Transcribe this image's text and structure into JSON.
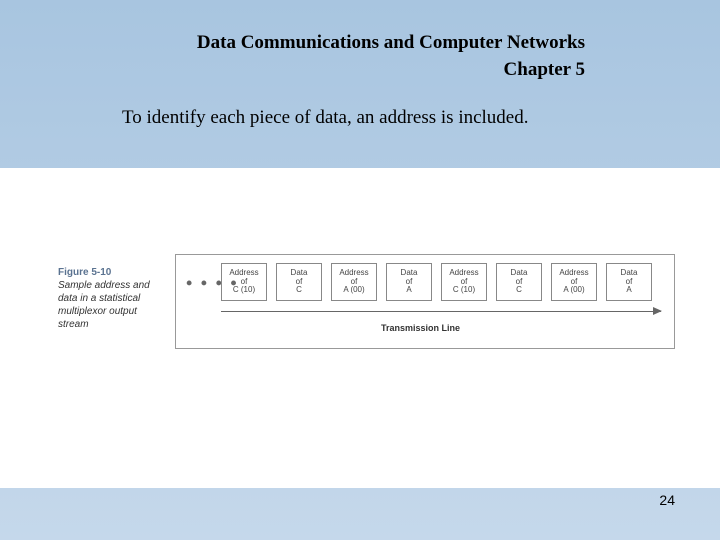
{
  "header": {
    "title": "Data Communications and Computer Networks",
    "chapter": "Chapter 5"
  },
  "body_text": "To identify each piece of data, an address is included.",
  "figure": {
    "label": "Figure 5-10",
    "description": "Sample address and data in a statistical multiplexor output stream",
    "ellipsis": "• • • •",
    "cells": [
      {
        "line1": "Address",
        "line2": "of",
        "line3": "C (10)"
      },
      {
        "line1": "Data",
        "line2": "of",
        "line3": "C"
      },
      {
        "line1": "Address",
        "line2": "of",
        "line3": "A (00)"
      },
      {
        "line1": "Data",
        "line2": "of",
        "line3": "A"
      },
      {
        "line1": "Address",
        "line2": "of",
        "line3": "C (10)"
      },
      {
        "line1": "Data",
        "line2": "of",
        "line3": "C"
      },
      {
        "line1": "Address",
        "line2": "of",
        "line3": "A (00)"
      },
      {
        "line1": "Data",
        "line2": "of",
        "line3": "A"
      }
    ],
    "arrow_label": "Transmission Line"
  },
  "page_number": "24"
}
